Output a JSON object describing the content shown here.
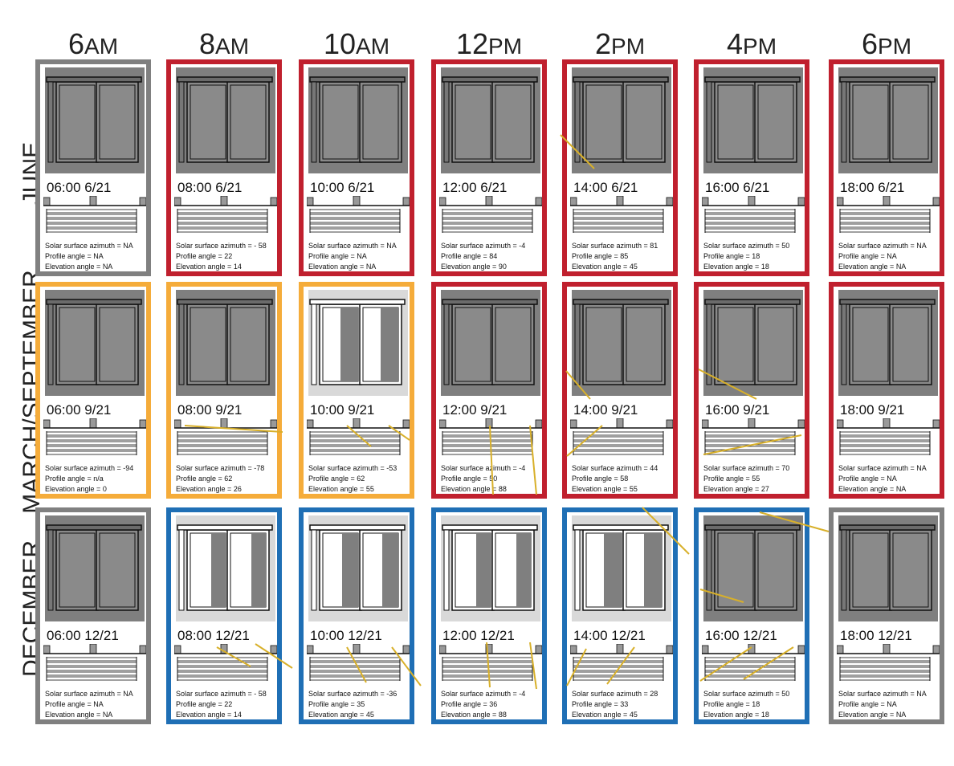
{
  "colors": {
    "red": "#c0202e",
    "orange": "#f5ac3a",
    "blue": "#1f6fb5",
    "gray": "#808080",
    "sun": "#d8b02a",
    "shade": "#7f7f7f"
  },
  "labels": {
    "azimuth": "Solar surface azimuth = ",
    "profile": "Profile angle = ",
    "elevation": "Elevation angle = "
  },
  "columns": [
    {
      "num": "6",
      "ampm": "AM"
    },
    {
      "num": "8",
      "ampm": "AM"
    },
    {
      "num": "10",
      "ampm": "AM"
    },
    {
      "num": "12",
      "ampm": "PM"
    },
    {
      "num": "2",
      "ampm": "PM"
    },
    {
      "num": "4",
      "ampm": "PM"
    },
    {
      "num": "6",
      "ampm": "PM"
    }
  ],
  "rows": [
    {
      "name": "JUNE",
      "cells": [
        {
          "stamp": "06:00 6/21",
          "azimuth": "NA",
          "profile": "NA",
          "elevation": "NA",
          "frame": "gray",
          "lit": 0,
          "shade": "full"
        },
        {
          "stamp": "08:00 6/21",
          "azimuth": "- 58",
          "profile": "22",
          "elevation": "14",
          "frame": "red",
          "lit": 0,
          "shade": "full"
        },
        {
          "stamp": "10:00 6/21",
          "azimuth": "NA",
          "profile": "NA",
          "elevation": "NA",
          "frame": "red",
          "lit": 0,
          "shade": "full"
        },
        {
          "stamp": "12:00 6/21",
          "azimuth": "-4",
          "profile": "84",
          "elevation": "90",
          "frame": "red",
          "lit": 0,
          "shade": "full"
        },
        {
          "stamp": "14:00 6/21",
          "azimuth": "81",
          "profile": "85",
          "elevation": "45",
          "frame": "red",
          "lit": 0,
          "shade": "full"
        },
        {
          "stamp": "16:00 6/21",
          "azimuth": "50",
          "profile": "18",
          "elevation": "18",
          "frame": "red",
          "lit": 0,
          "shade": "full"
        },
        {
          "stamp": "18:00 6/21",
          "azimuth": "NA",
          "profile": "NA",
          "elevation": "NA",
          "frame": "red",
          "lit": 0,
          "shade": "full"
        }
      ]
    },
    {
      "name": "MARCH/SEPTEMBER",
      "cells": [
        {
          "stamp": "06:00 9/21",
          "azimuth": "-94",
          "profile": "n/a",
          "elevation": "0",
          "frame": "orange",
          "lit": 0,
          "shade": "full"
        },
        {
          "stamp": "08:00 9/21",
          "azimuth": "-78",
          "profile": "62",
          "elevation": "26",
          "frame": "orange",
          "lit": 0,
          "shade": "full"
        },
        {
          "stamp": "10:00 9/21",
          "azimuth": "-53",
          "profile": "62",
          "elevation": "55",
          "frame": "orange",
          "lit": 0.5,
          "shade": "partial"
        },
        {
          "stamp": "12:00 9/21",
          "azimuth": "-4",
          "profile": "50",
          "elevation": "88",
          "frame": "red",
          "lit": 0,
          "shade": "full"
        },
        {
          "stamp": "14:00 9/21",
          "azimuth": "44",
          "profile": "58",
          "elevation": "55",
          "frame": "red",
          "lit": 0,
          "shade": "full"
        },
        {
          "stamp": "16:00 9/21",
          "azimuth": "70",
          "profile": "55",
          "elevation": "27",
          "frame": "red",
          "lit": 0,
          "shade": "full"
        },
        {
          "stamp": "18:00 9/21",
          "azimuth": "NA",
          "profile": "NA",
          "elevation": "NA",
          "frame": "red",
          "lit": 0,
          "shade": "full"
        }
      ]
    },
    {
      "name": "DECEMBER",
      "cells": [
        {
          "stamp": "06:00 12/21",
          "azimuth": "NA",
          "profile": "NA",
          "elevation": "NA",
          "frame": "gray",
          "lit": 0,
          "shade": "full"
        },
        {
          "stamp": "08:00 12/21",
          "azimuth": "- 58",
          "profile": "22",
          "elevation": "14",
          "frame": "blue",
          "lit": 0.6,
          "shade": "partial"
        },
        {
          "stamp": "10:00 12/21",
          "azimuth": "-36",
          "profile": "35",
          "elevation": "45",
          "frame": "blue",
          "lit": 0.55,
          "shade": "partial"
        },
        {
          "stamp": "12:00 12/21",
          "azimuth": "-4",
          "profile": "36",
          "elevation": "88",
          "frame": "blue",
          "lit": 0.6,
          "shade": "partial"
        },
        {
          "stamp": "14:00 12/21",
          "azimuth": "28",
          "profile": "33",
          "elevation": "45",
          "frame": "blue",
          "lit": 0.5,
          "shade": "partial"
        },
        {
          "stamp": "16:00 12/21",
          "azimuth": "50",
          "profile": "18",
          "elevation": "18",
          "frame": "blue",
          "lit": 0,
          "shade": "full"
        },
        {
          "stamp": "18:00 12/21",
          "azimuth": "NA",
          "profile": "NA",
          "elevation": "NA",
          "frame": "gray",
          "lit": 0,
          "shade": "full"
        }
      ]
    }
  ]
}
